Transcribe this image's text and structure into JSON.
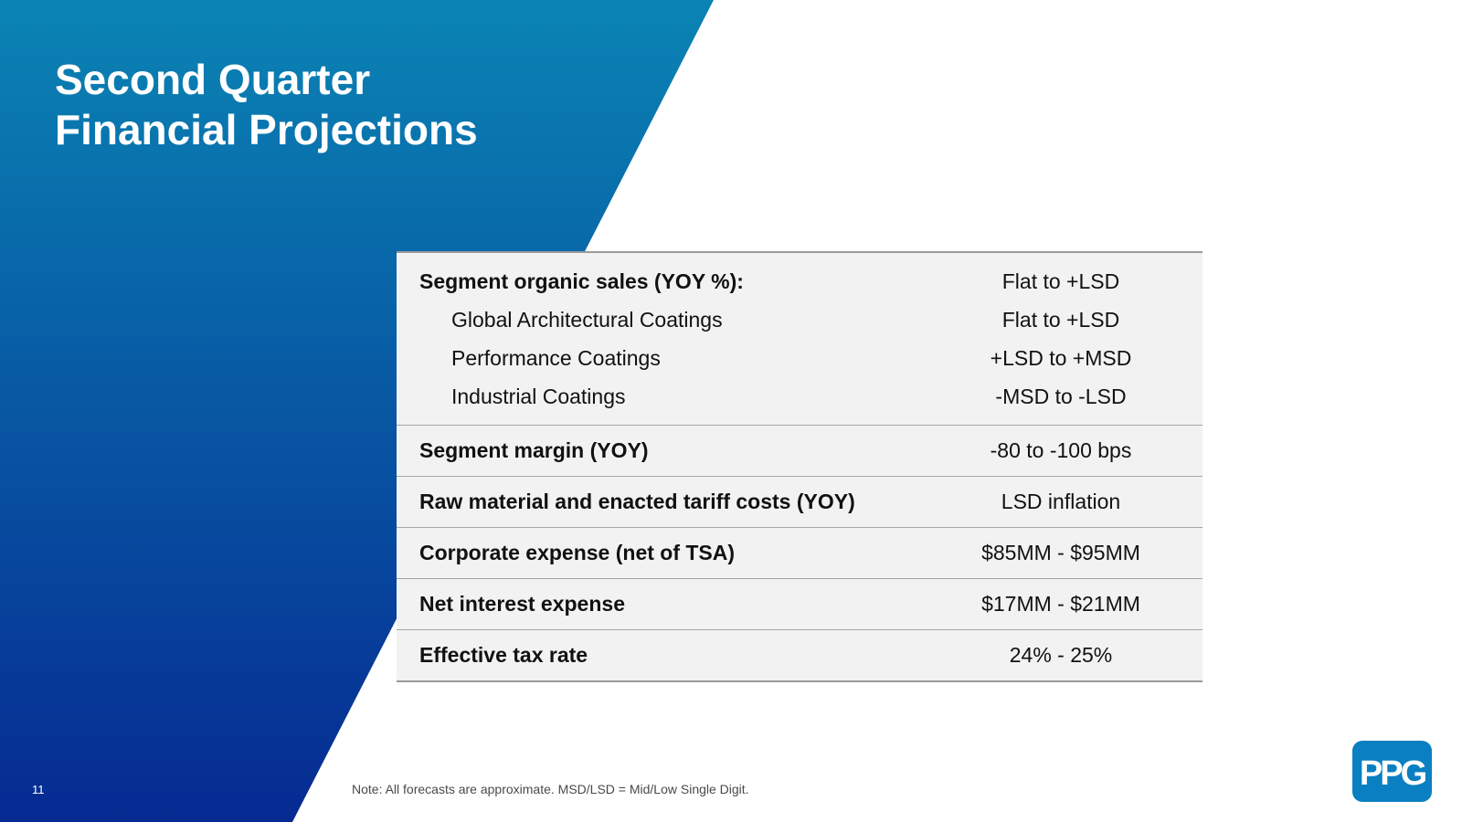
{
  "slide": {
    "title_line1": "Second Quarter",
    "title_line2": "Financial Projections",
    "page_number": "11",
    "note": "Note: All forecasts are approximate. MSD/LSD =  Mid/Low Single Digit.",
    "logo_text": "PPG",
    "colors": {
      "gradient_top": "#0a84b4",
      "gradient_bottom": "#062a92",
      "table_bg": "#f2f2f2",
      "logo_blue": "#0a7fc1"
    }
  },
  "table": {
    "rows": [
      {
        "label": "Segment organic sales (YOY %):",
        "value": "Flat to +LSD"
      },
      {
        "label": "Global Architectural Coatings",
        "value": "Flat to +LSD"
      },
      {
        "label": "Performance Coatings",
        "value": "+LSD to +MSD"
      },
      {
        "label": "Industrial Coatings",
        "value": "-MSD to -LSD"
      },
      {
        "label": "Segment margin (YOY)",
        "value": "-80 to -100 bps"
      },
      {
        "label": "Raw material and enacted tariff costs (YOY)",
        "value": "LSD inflation"
      },
      {
        "label": "Corporate expense (net of TSA)",
        "value": "$85MM - $95MM"
      },
      {
        "label": "Net interest expense",
        "value": "$17MM - $21MM"
      },
      {
        "label": "Effective tax rate",
        "value": "24% - 25%"
      }
    ]
  }
}
